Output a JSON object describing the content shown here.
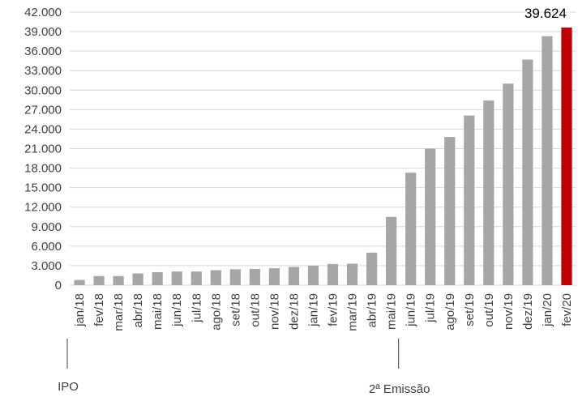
{
  "chart_data": {
    "type": "bar",
    "categories": [
      "jan/18",
      "fev/18",
      "mar/18",
      "abr/18",
      "mai/18",
      "jun/18",
      "jul/18",
      "ago/18",
      "set/18",
      "out/18",
      "nov/18",
      "dez/18",
      "jan/19",
      "fev/19",
      "mar/19",
      "abr/19",
      "mai/19",
      "jun/19",
      "jul/19",
      "ago/19",
      "set/19",
      "out/19",
      "nov/19",
      "dez/19",
      "jan/20",
      "fev/20"
    ],
    "values": [
      800,
      1400,
      1400,
      1800,
      2000,
      2100,
      2100,
      2300,
      2450,
      2500,
      2600,
      2800,
      3000,
      3250,
      3300,
      5000,
      10500,
      17300,
      21000,
      22800,
      26100,
      28400,
      31000,
      34700,
      38300,
      39624
    ],
    "yticks": [
      "0",
      "3.000",
      "6.000",
      "9.000",
      "12.000",
      "15.000",
      "18.000",
      "21.000",
      "24.000",
      "27.000",
      "30.000",
      "33.000",
      "36.000",
      "39.000",
      "42.000"
    ],
    "ylim": [
      0,
      42000
    ],
    "highlight_label": "39.624",
    "colors": {
      "bar": "#a6a6a6",
      "highlight": "#c00000",
      "grid": "#d9d9d9",
      "text": "#404040"
    },
    "annotations": [
      {
        "label": "IPO",
        "category": "jan/18"
      },
      {
        "label": "2ª Emissão",
        "category": "jun/19"
      }
    ],
    "grid": true
  }
}
